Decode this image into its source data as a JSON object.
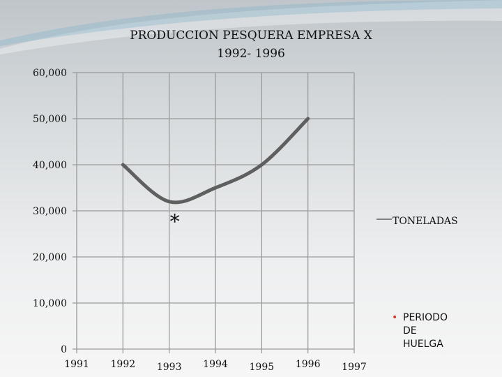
{
  "title_lines": [
    "PRODUCCION PESQUERA EMPRESA X",
    "1992- 1996"
  ],
  "annotation_star": "*",
  "note_lines": [
    "PERIODO",
    "DE",
    "HUELGA"
  ],
  "colors": {
    "line": "#5f5f5f",
    "grid": "#9a9a9a",
    "bullet": "#d03a2a"
  },
  "chart_data": {
    "type": "line",
    "title": "PRODUCCION PESQUERA EMPRESA X 1992- 1996",
    "categories": [
      "1991",
      "1992",
      "1993",
      "1994",
      "1995",
      "1996",
      "1997"
    ],
    "y_ticks": [
      "0",
      "10,000",
      "20,000",
      "30,000",
      "40,000",
      "50,000",
      "60,000"
    ],
    "ylim": [
      0,
      60000
    ],
    "grid": true,
    "legend_position": "right",
    "series": [
      {
        "name": "TONELADAS",
        "x": [
          "1992",
          "1993",
          "1994",
          "1995",
          "1996"
        ],
        "values": [
          40000,
          32000,
          35000,
          40000,
          50000
        ]
      }
    ]
  }
}
